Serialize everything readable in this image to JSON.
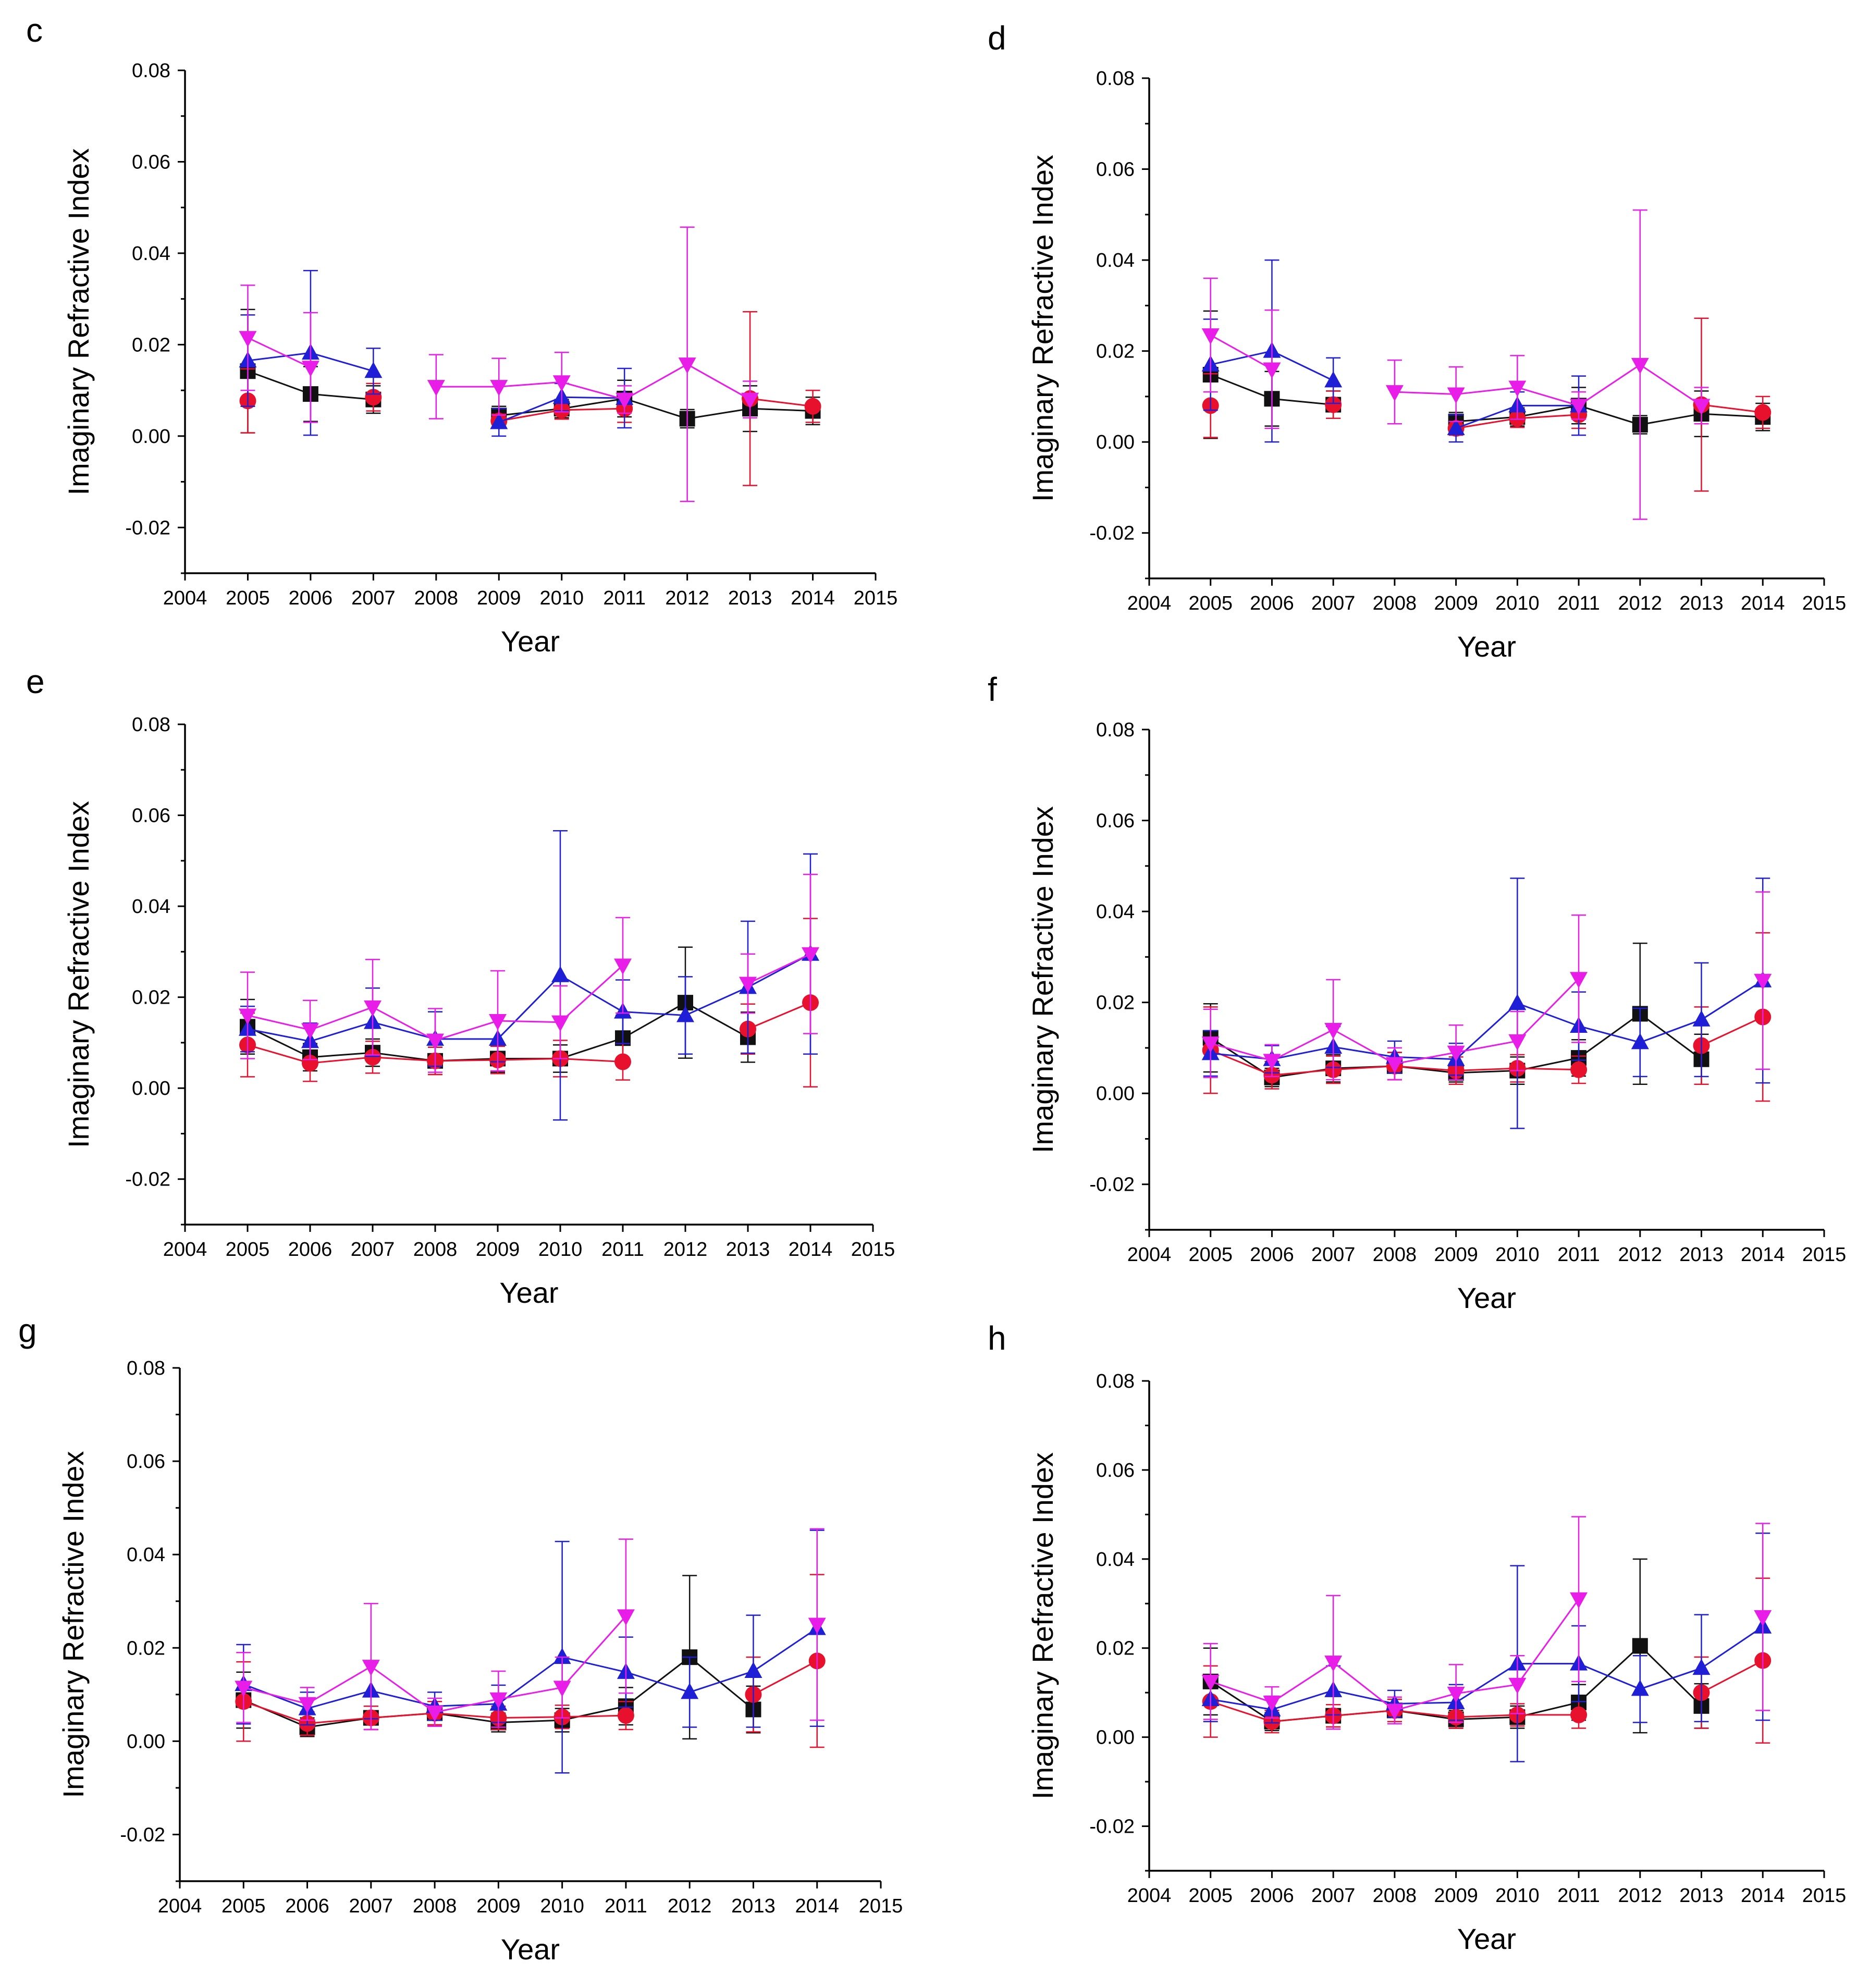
{
  "figure": {
    "colors": {
      "black": "#111111",
      "red": "#e8112d",
      "blue": "#1f1fd6",
      "magenta": "#e81ee8"
    },
    "markers": {
      "black": "square",
      "red": "circle",
      "blue": "triangle-up",
      "magenta": "triangle-down"
    }
  },
  "chart_data": [
    {
      "panel": "c",
      "type": "line",
      "xlabel": "Year",
      "ylabel": "Imaginary Refractive Index",
      "xlim": [
        2004,
        2015
      ],
      "ylim": [
        -0.03,
        0.08
      ],
      "xticks": [
        "2004",
        "2005",
        "2006",
        "2007",
        "2008",
        "2009",
        "2010",
        "2011",
        "2012",
        "2013",
        "2014",
        "2015"
      ],
      "yticks": [
        "-0.02",
        "0.00",
        "0.02",
        "0.04",
        "0.06",
        "0.08"
      ],
      "x": [
        2005,
        2006,
        2007,
        2008,
        2009,
        2010,
        2011,
        2012,
        2013,
        2014
      ],
      "series": [
        {
          "color": "black",
          "values": [
            0.0142,
            0.0092,
            0.008,
            null,
            0.0045,
            0.006,
            0.0082,
            0.0038,
            0.006,
            0.0055
          ],
          "errors": [
            0.0135,
            0.006,
            0.003,
            null,
            0.002,
            0.002,
            0.004,
            0.002,
            0.005,
            0.003
          ]
        },
        {
          "color": "red",
          "values": [
            0.0077,
            null,
            0.0085,
            null,
            0.0033,
            0.0057,
            0.006,
            null,
            0.0082,
            0.0065
          ],
          "errors": [
            0.007,
            null,
            0.003,
            null,
            0.0015,
            0.002,
            0.003,
            null,
            0.019,
            0.0035
          ]
        },
        {
          "color": "blue",
          "values": [
            0.0165,
            0.0182,
            0.0142,
            null,
            0.003,
            0.0085,
            0.0083,
            null,
            null,
            null
          ],
          "errors": [
            0.01,
            0.018,
            0.005,
            null,
            0.003,
            0.003,
            0.0065,
            null,
            null,
            null
          ]
        },
        {
          "color": "magenta",
          "values": [
            0.0215,
            0.015,
            null,
            0.0108,
            0.0108,
            0.0118,
            0.008,
            0.0157,
            0.008,
            null
          ],
          "errors": [
            0.0115,
            0.012,
            null,
            0.007,
            0.0062,
            0.0065,
            0.003,
            0.03,
            0.004,
            null
          ]
        }
      ]
    },
    {
      "panel": "d",
      "type": "line",
      "xlabel": "Year",
      "ylabel": "Imaginary Refractive Index",
      "xlim": [
        2004,
        2015
      ],
      "ylim": [
        -0.03,
        0.08
      ],
      "xticks": [
        "2004",
        "2005",
        "2006",
        "2007",
        "2008",
        "2009",
        "2010",
        "2011",
        "2012",
        "2013",
        "2014",
        "2015"
      ],
      "yticks": [
        "-0.02",
        "0.00",
        "0.02",
        "0.04",
        "0.06",
        "0.08"
      ],
      "x": [
        2005,
        2006,
        2007,
        2008,
        2009,
        2010,
        2011,
        2012,
        2013,
        2014
      ],
      "series": [
        {
          "color": "black",
          "values": [
            0.0148,
            0.0095,
            0.0082,
            null,
            0.0045,
            0.0055,
            0.008,
            0.0038,
            0.0062,
            0.0055
          ],
          "errors": [
            0.014,
            0.006,
            0.003,
            null,
            0.002,
            0.002,
            0.004,
            0.002,
            0.005,
            0.003
          ]
        },
        {
          "color": "red",
          "values": [
            0.008,
            null,
            0.0082,
            null,
            0.003,
            0.0052,
            0.006,
            null,
            0.0082,
            0.0065
          ],
          "errors": [
            0.007,
            null,
            0.003,
            null,
            0.0015,
            0.002,
            0.003,
            null,
            0.019,
            0.0035
          ]
        },
        {
          "color": "blue",
          "values": [
            0.017,
            0.02,
            0.0135,
            null,
            0.003,
            0.008,
            0.008,
            null,
            null,
            null
          ],
          "errors": [
            0.01,
            0.02,
            0.005,
            null,
            0.003,
            0.003,
            0.0065,
            null,
            null,
            null
          ]
        },
        {
          "color": "magenta",
          "values": [
            0.0235,
            0.016,
            null,
            0.011,
            0.0105,
            0.012,
            0.008,
            0.017,
            0.008,
            null
          ],
          "errors": [
            0.0125,
            0.013,
            null,
            0.007,
            0.006,
            0.007,
            0.003,
            0.034,
            0.004,
            null
          ]
        }
      ]
    },
    {
      "panel": "e",
      "type": "line",
      "xlabel": "Year",
      "ylabel": "Imaginary Refractive Index",
      "xlim": [
        2004,
        2015
      ],
      "ylim": [
        -0.03,
        0.08
      ],
      "xticks": [
        "2004",
        "2005",
        "2006",
        "2007",
        "2008",
        "2009",
        "2010",
        "2011",
        "2012",
        "2013",
        "2014",
        "2015"
      ],
      "yticks": [
        "-0.02",
        "0.00",
        "0.02",
        "0.04",
        "0.06",
        "0.08"
      ],
      "x": [
        2005,
        2006,
        2007,
        2008,
        2009,
        2010,
        2011,
        2012,
        2013,
        2014
      ],
      "series": [
        {
          "color": "black",
          "values": [
            0.0135,
            0.0068,
            0.0078,
            0.006,
            0.0065,
            0.0065,
            0.011,
            0.0188,
            0.0112,
            null
          ],
          "errors": [
            0.006,
            0.003,
            0.003,
            0.003,
            0.003,
            0.003,
            0.005,
            0.0122,
            0.0055,
            null
          ]
        },
        {
          "color": "red",
          "values": [
            0.0095,
            0.0055,
            0.0068,
            0.006,
            0.0062,
            0.0065,
            0.0058,
            null,
            0.013,
            0.0188
          ],
          "errors": [
            0.007,
            0.004,
            0.0035,
            0.003,
            0.003,
            0.004,
            0.004,
            null,
            0.0055,
            0.0185
          ]
        },
        {
          "color": "blue",
          "values": [
            0.013,
            0.0103,
            0.0145,
            0.0108,
            0.0108,
            0.0248,
            0.0168,
            0.016,
            0.0222,
            0.0295
          ],
          "errors": [
            0.005,
            0.004,
            0.0075,
            0.006,
            0.005,
            0.0318,
            0.007,
            0.0085,
            0.0145,
            0.022
          ]
        },
        {
          "color": "magenta",
          "values": [
            0.016,
            0.0128,
            0.0178,
            0.0105,
            0.0148,
            0.0145,
            0.027,
            null,
            0.023,
            0.0295
          ],
          "errors": [
            0.0095,
            0.0065,
            0.0105,
            0.007,
            0.011,
            0.008,
            0.0105,
            null,
            0.0065,
            0.0175
          ]
        }
      ]
    },
    {
      "panel": "f",
      "type": "line",
      "xlabel": "Year",
      "ylabel": "Imaginary Refractive Index",
      "xlim": [
        2004,
        2015
      ],
      "ylim": [
        -0.03,
        0.08
      ],
      "xticks": [
        "2004",
        "2005",
        "2006",
        "2007",
        "2008",
        "2009",
        "2010",
        "2011",
        "2012",
        "2013",
        "2014",
        "2015"
      ],
      "yticks": [
        "-0.02",
        "0.00",
        "0.02",
        "0.04",
        "0.06",
        "0.08"
      ],
      "x": [
        2005,
        2006,
        2007,
        2008,
        2009,
        2010,
        2011,
        2012,
        2013,
        2014
      ],
      "series": [
        {
          "color": "black",
          "values": [
            0.0122,
            0.0035,
            0.0055,
            0.006,
            0.0045,
            0.005,
            0.0078,
            0.0175,
            0.0075,
            null
          ],
          "errors": [
            0.0075,
            0.002,
            0.003,
            0.003,
            0.002,
            0.003,
            0.004,
            0.0155,
            0.0055,
            null
          ]
        },
        {
          "color": "red",
          "values": [
            0.0095,
            0.004,
            0.0052,
            0.006,
            0.005,
            0.0055,
            0.0052,
            null,
            0.0105,
            0.0168
          ],
          "errors": [
            0.0095,
            0.003,
            0.003,
            0.003,
            0.003,
            0.003,
            0.003,
            null,
            0.0085,
            0.0185
          ]
        },
        {
          "color": "blue",
          "values": [
            0.0088,
            0.0075,
            0.0102,
            0.008,
            0.0075,
            0.0198,
            0.0148,
            0.0112,
            0.0162,
            0.0248
          ],
          "errors": [
            0.005,
            0.003,
            0.0045,
            0.0035,
            0.0035,
            0.0275,
            0.0075,
            0.0075,
            0.0125,
            0.0225
          ]
        },
        {
          "color": "magenta",
          "values": [
            0.011,
            0.0072,
            0.014,
            0.0065,
            0.009,
            0.0115,
            0.0252,
            null,
            null,
            0.0248
          ],
          "errors": [
            0.0075,
            0.0035,
            0.011,
            0.0035,
            0.006,
            0.0065,
            0.014,
            null,
            null,
            0.0195
          ]
        }
      ]
    },
    {
      "panel": "g",
      "type": "line",
      "xlabel": "Year",
      "ylabel": "Imaginary Refractive Index",
      "xlim": [
        2004,
        2015
      ],
      "ylim": [
        -0.03,
        0.08
      ],
      "xticks": [
        "2004",
        "2005",
        "2006",
        "2007",
        "2008",
        "2009",
        "2010",
        "2011",
        "2012",
        "2013",
        "2014",
        "2015"
      ],
      "yticks": [
        "-0.02",
        "0.00",
        "0.02",
        "0.04",
        "0.06",
        "0.08"
      ],
      "x": [
        2005,
        2006,
        2007,
        2008,
        2009,
        2010,
        2011,
        2012,
        2013,
        2014
      ],
      "series": [
        {
          "color": "black",
          "values": [
            0.0088,
            0.003,
            0.005,
            0.006,
            0.004,
            0.0045,
            0.0075,
            0.018,
            0.0068,
            null
          ],
          "errors": [
            0.006,
            0.002,
            0.0025,
            0.0025,
            0.002,
            0.0025,
            0.004,
            0.0175,
            0.005,
            null
          ]
        },
        {
          "color": "red",
          "values": [
            0.0085,
            0.0038,
            0.005,
            0.006,
            0.005,
            0.0052,
            0.0055,
            null,
            0.01,
            0.0172
          ],
          "errors": [
            0.0085,
            0.0025,
            0.0025,
            0.0025,
            0.0025,
            0.0025,
            0.003,
            null,
            0.008,
            0.0185
          ]
        },
        {
          "color": "blue",
          "values": [
            0.0122,
            0.007,
            0.0108,
            0.0075,
            0.008,
            0.018,
            0.0148,
            0.0105,
            0.015,
            0.0242
          ],
          "errors": [
            0.0085,
            0.0035,
            0.006,
            0.003,
            0.004,
            0.0248,
            0.0075,
            0.0075,
            0.012,
            0.021
          ]
        },
        {
          "color": "magenta",
          "values": [
            0.0115,
            0.008,
            0.016,
            0.0062,
            0.009,
            0.0115,
            0.0268,
            null,
            null,
            0.025
          ],
          "errors": [
            0.0075,
            0.0035,
            0.0135,
            0.003,
            0.006,
            0.0065,
            0.0165,
            null,
            null,
            0.0205
          ]
        }
      ]
    },
    {
      "panel": "h",
      "type": "line",
      "xlabel": "Year",
      "ylabel": "Imaginary Refractive Index",
      "xlim": [
        2004,
        2015
      ],
      "ylim": [
        -0.03,
        0.08
      ],
      "xticks": [
        "2004",
        "2005",
        "2006",
        "2007",
        "2008",
        "2009",
        "2010",
        "2011",
        "2012",
        "2013",
        "2014",
        "2015"
      ],
      "yticks": [
        "-0.02",
        "0.00",
        "0.02",
        "0.04",
        "0.06",
        "0.08"
      ],
      "x": [
        2005,
        2006,
        2007,
        2008,
        2009,
        2010,
        2011,
        2012,
        2013,
        2014
      ],
      "series": [
        {
          "color": "black",
          "values": [
            0.0125,
            0.0035,
            0.0048,
            0.006,
            0.004,
            0.0045,
            0.0078,
            0.0205,
            0.007,
            null
          ],
          "errors": [
            0.0075,
            0.002,
            0.0025,
            0.0025,
            0.002,
            0.0025,
            0.004,
            0.0195,
            0.005,
            null
          ]
        },
        {
          "color": "red",
          "values": [
            0.008,
            0.0035,
            0.0048,
            0.006,
            0.0045,
            0.005,
            0.005,
            null,
            0.01,
            0.0172
          ],
          "errors": [
            0.008,
            0.0025,
            0.0025,
            0.0025,
            0.0025,
            0.0025,
            0.003,
            null,
            0.008,
            0.0185
          ]
        },
        {
          "color": "blue",
          "values": [
            0.0085,
            0.0062,
            0.0105,
            0.0075,
            0.0078,
            0.0165,
            0.0165,
            0.0108,
            0.0155,
            0.0248
          ],
          "errors": [
            0.005,
            0.003,
            0.0055,
            0.003,
            0.004,
            0.022,
            0.0085,
            0.0075,
            0.012,
            0.021
          ]
        },
        {
          "color": "magenta",
          "values": [
            0.0125,
            0.0078,
            0.0168,
            0.006,
            0.0098,
            0.0118,
            0.031,
            null,
            null,
            0.027
          ],
          "errors": [
            0.0085,
            0.0035,
            0.015,
            0.003,
            0.0065,
            0.0065,
            0.0185,
            null,
            null,
            0.021
          ]
        }
      ]
    }
  ]
}
